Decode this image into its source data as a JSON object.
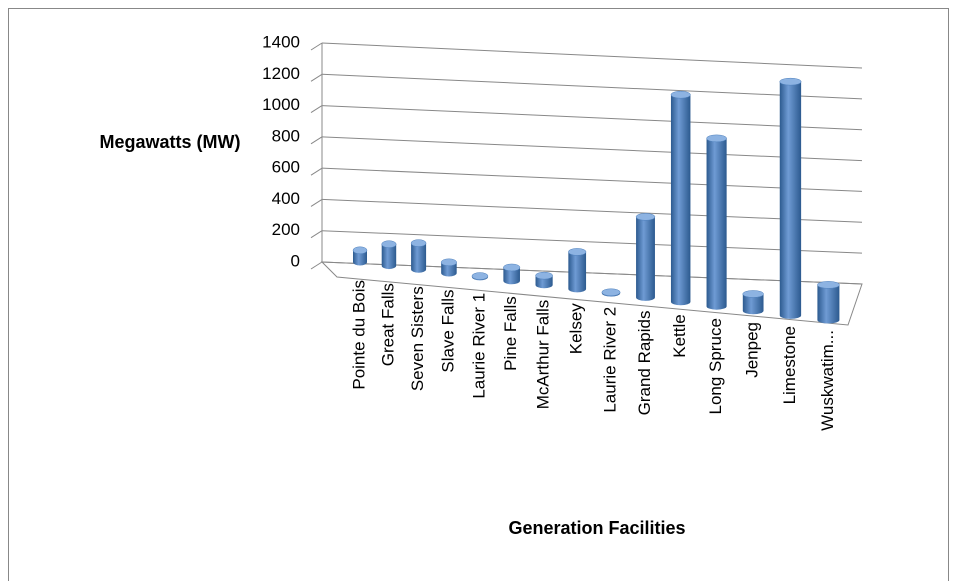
{
  "chart_data": {
    "type": "bar",
    "y_label": "Megawatts (MW)",
    "x_label": "Generation Facilities",
    "categories": [
      "Pointe du Bois",
      "Great Falls",
      "Seven Sisters",
      "Slave Falls",
      "Laurie River 1",
      "Pine Falls",
      "McArthur Falls",
      "Kelsey",
      "Laurie River 2",
      "Grand Rapids",
      "Kettle",
      "Long Spruce",
      "Jenpeg",
      "Limestone",
      "Wuskwatim..."
    ],
    "values": [
      75,
      136,
      165,
      67,
      5,
      82,
      56,
      224,
      5,
      479,
      1220,
      980,
      97,
      1340,
      200
    ],
    "color": "#4f81bd",
    "ylim": [
      0,
      1400
    ],
    "yticks": [
      0,
      200,
      400,
      600,
      800,
      1000,
      1200,
      1400
    ],
    "grid": true
  }
}
